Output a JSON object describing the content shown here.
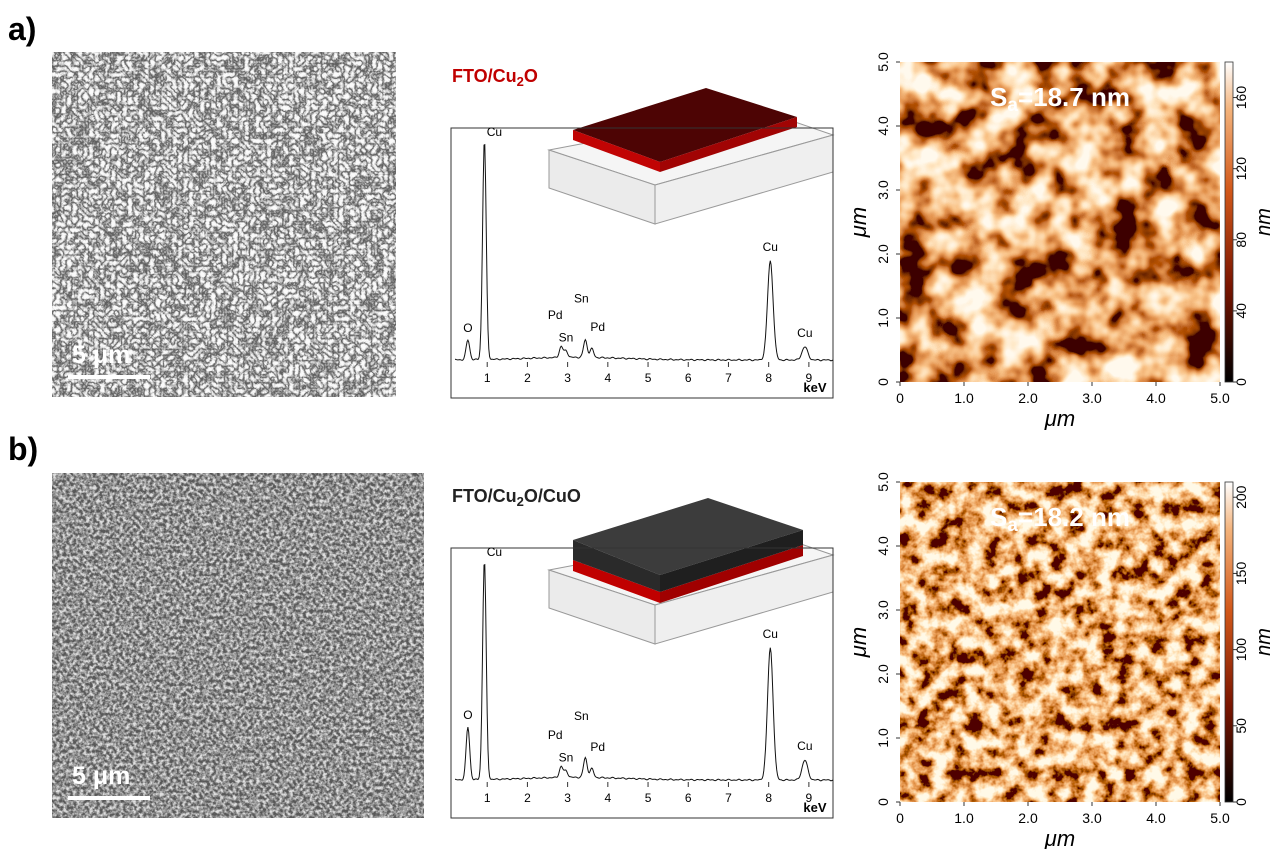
{
  "panels": [
    {
      "label": "a)",
      "sem": {
        "scale_bar": "5 μm"
      },
      "eds": {
        "title": {
          "pre": "FTO/Cu",
          "sub": "2",
          "post": "O"
        },
        "title_color": "#c00000",
        "xlim": [
          0,
          9.6
        ],
        "xticks": [
          1,
          2,
          3,
          4,
          5,
          6,
          7,
          8,
          9
        ],
        "xlabel": "keV",
        "peaks": [
          {
            "label": "O",
            "energy": 0.52,
            "intensity": 9
          },
          {
            "label": "Cu",
            "energy": 0.93,
            "intensity": 100
          },
          {
            "label": "Pd",
            "energy": 2.84,
            "intensity": 5
          },
          {
            "label": "Sn",
            "energy": 2.96,
            "intensity": 3
          },
          {
            "label": "Sn",
            "energy": 3.44,
            "intensity": 8
          },
          {
            "label": "Pd",
            "energy": 3.6,
            "intensity": 4
          },
          {
            "label": "Cu",
            "energy": 8.04,
            "intensity": 45
          },
          {
            "label": "Cu",
            "energy": 8.9,
            "intensity": 6
          }
        ]
      },
      "afm": {
        "roughness": {
          "symbol": "S",
          "sub": "a",
          "text": "=18.7 nm"
        },
        "xlim": [
          0,
          5
        ],
        "ylim": [
          0,
          5
        ],
        "xticks": [
          0,
          {
            "value": 1,
            "label": "1.0"
          },
          {
            "value": 2,
            "label": "2.0"
          },
          {
            "value": 3,
            "label": "3.0"
          },
          {
            "value": 4,
            "label": "4.0"
          },
          {
            "value": 5,
            "label": "5.0"
          }
        ],
        "yticks": [
          0,
          {
            "value": 1,
            "label": "1.0"
          },
          {
            "value": 2,
            "label": "2.0"
          },
          {
            "value": 3,
            "label": "3.0"
          },
          {
            "value": 4,
            "label": "4.0"
          },
          {
            "value": 5,
            "label": "5.0"
          }
        ],
        "xlabel": "μm",
        "ylabel": "μm",
        "colorbar": {
          "lim": [
            0,
            180
          ],
          "ticks": [
            0,
            40,
            80,
            120,
            160
          ],
          "label": "nm"
        }
      }
    },
    {
      "label": "b)",
      "sem": {
        "scale_bar": "5 μm"
      },
      "eds": {
        "title": {
          "pre": "FTO/Cu",
          "sub": "2",
          "post": "O/CuO"
        },
        "title_color": "#222222",
        "xlim": [
          0,
          9.6
        ],
        "xticks": [
          1,
          2,
          3,
          4,
          5,
          6,
          7,
          8,
          9
        ],
        "xlabel": "keV",
        "peaks": [
          {
            "label": "O",
            "energy": 0.52,
            "intensity": 24
          },
          {
            "label": "Cu",
            "energy": 0.93,
            "intensity": 100
          },
          {
            "label": "Pd",
            "energy": 2.84,
            "intensity": 5
          },
          {
            "label": "Sn",
            "energy": 2.96,
            "intensity": 3
          },
          {
            "label": "Sn",
            "energy": 3.44,
            "intensity": 9
          },
          {
            "label": "Pd",
            "energy": 3.6,
            "intensity": 4
          },
          {
            "label": "Cu",
            "energy": 8.04,
            "intensity": 60
          },
          {
            "label": "Cu",
            "energy": 8.9,
            "intensity": 9
          }
        ]
      },
      "afm": {
        "roughness": {
          "symbol": "S",
          "sub": "a",
          "text": "=18.2 nm"
        },
        "xlim": [
          0,
          5
        ],
        "ylim": [
          0,
          5
        ],
        "xticks": [
          0,
          {
            "value": 1,
            "label": "1.0"
          },
          {
            "value": 2,
            "label": "2.0"
          },
          {
            "value": 3,
            "label": "3.0"
          },
          {
            "value": 4,
            "label": "4.0"
          },
          {
            "value": 5,
            "label": "5.0"
          }
        ],
        "yticks": [
          0,
          {
            "value": 1,
            "label": "1.0"
          },
          {
            "value": 2,
            "label": "2.0"
          },
          {
            "value": 3,
            "label": "3.0"
          },
          {
            "value": 4,
            "label": "4.0"
          },
          {
            "value": 5,
            "label": "5.0"
          }
        ],
        "xlabel": "μm",
        "ylabel": "μm",
        "colorbar": {
          "lim": [
            0,
            210
          ],
          "ticks": [
            0,
            50,
            100,
            150,
            200
          ],
          "label": "nm"
        }
      }
    }
  ]
}
